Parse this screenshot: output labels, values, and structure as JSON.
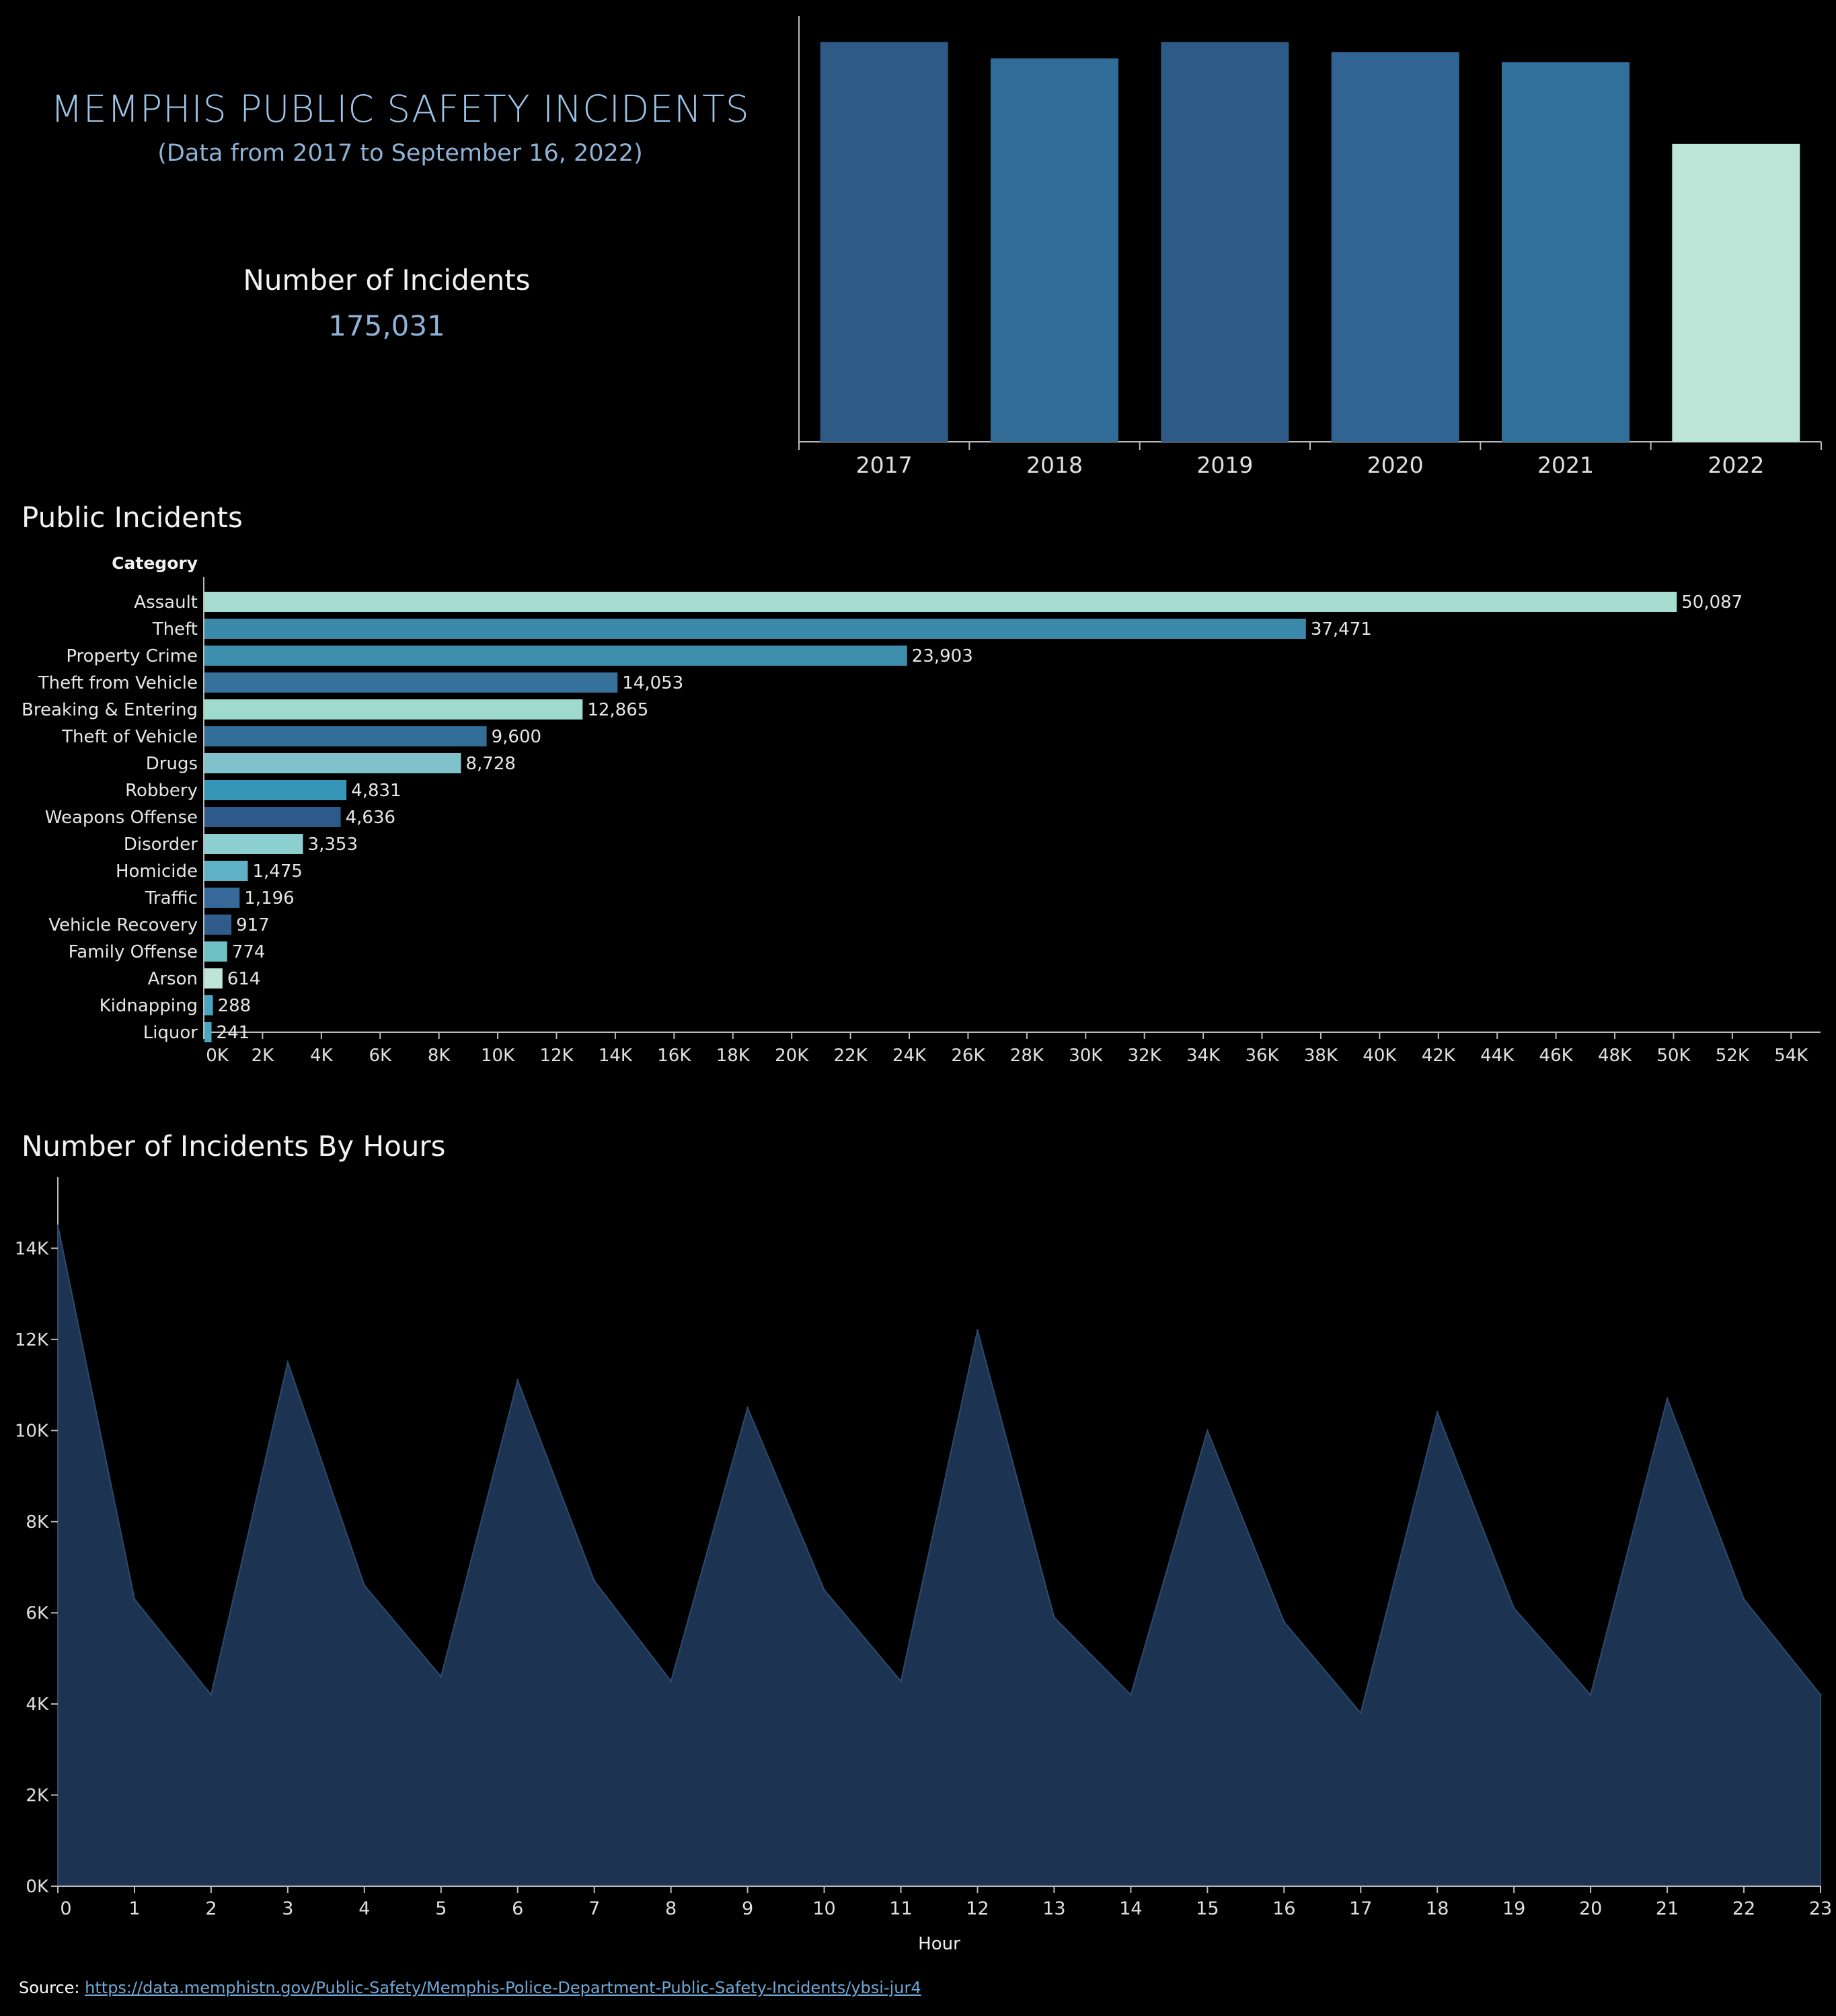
{
  "header": {
    "title": "MEMPHIS PUBLIC SAFETY INCIDENTS",
    "subtitle": "(Data from 2017 to September 16, 2022)",
    "kpi_label": "Number of Incidents",
    "kpi_value": "175,031"
  },
  "sections": {
    "public_incidents_title": "Public Incidents",
    "hours_title": "Number of Incidents By Hours"
  },
  "source": {
    "label": "Source:",
    "url": "https://data.memphistn.gov/Public-Safety/Memphis-Police-Department-Public-Safety-Incidents/ybsi-jur4"
  },
  "colors": {
    "background": "#000000",
    "year_bars": [
      "#2e5a88",
      "#306c96",
      "#2e5a88",
      "#306492",
      "#31709a",
      "#bde5d8"
    ],
    "area_fill": "#1c3452",
    "area_stroke": "#2c4a6e"
  },
  "chart_data": [
    {
      "id": "incidents_by_year",
      "type": "bar",
      "categories": [
        "2017",
        "2018",
        "2019",
        "2020",
        "2021",
        "2022"
      ],
      "values": [
        31800,
        30500,
        31800,
        31000,
        30200,
        23700
      ],
      "title": "",
      "xlabel": "",
      "ylabel": "",
      "ylim": [
        0,
        33000
      ],
      "grid": false
    },
    {
      "id": "public_incidents",
      "type": "bar",
      "orientation": "horizontal",
      "category_header": "Category",
      "categories": [
        "Assault",
        "Theft",
        "Property Crime",
        "Theft from Vehicle",
        "Breaking & Entering",
        "Theft of Vehicle",
        "Drugs",
        "Robbery",
        "Weapons Offense",
        "Disorder",
        "Homicide",
        "Traffic",
        "Vehicle Recovery",
        "Family Offense",
        "Arson",
        "Kidnapping",
        "Liquor"
      ],
      "values": [
        50087,
        37471,
        23903,
        14053,
        12865,
        9600,
        8728,
        4831,
        4636,
        3353,
        1475,
        1196,
        917,
        774,
        614,
        288,
        241
      ],
      "value_labels": [
        "50,087",
        "37,471",
        "23,903",
        "14,053",
        "12,865",
        "9,600",
        "8,728",
        "4,831",
        "4,636",
        "3,353",
        "1,475",
        "1,196",
        "917",
        "774",
        "614",
        "288",
        "241"
      ],
      "bar_colors": [
        "#a5dccf",
        "#3a88aa",
        "#3c90ae",
        "#35719b",
        "#9fdace",
        "#336e98",
        "#7fc2cc",
        "#3795b7",
        "#2e5a8b",
        "#8ccfcf",
        "#5fb1c6",
        "#36689a",
        "#2f5c8b",
        "#6cc1c5",
        "#bde6d8",
        "#48a4c1",
        "#4aa6c0"
      ],
      "x_ticks": [
        "0K",
        "2K",
        "4K",
        "6K",
        "8K",
        "10K",
        "12K",
        "14K",
        "16K",
        "18K",
        "20K",
        "22K",
        "24K",
        "26K",
        "28K",
        "30K",
        "32K",
        "34K",
        "36K",
        "38K",
        "40K",
        "42K",
        "44K",
        "46K",
        "48K",
        "50K",
        "52K",
        "54K"
      ],
      "xlim": [
        0,
        55000
      ],
      "grid": false
    },
    {
      "id": "incidents_by_hour",
      "type": "area",
      "title": "Number of Incidents By Hours",
      "xlabel": "Hour",
      "ylabel": "",
      "x": [
        0,
        1,
        2,
        3,
        4,
        5,
        6,
        7,
        8,
        9,
        10,
        11,
        12,
        13,
        14,
        15,
        16,
        17,
        18,
        19,
        20,
        21,
        22,
        23
      ],
      "values": [
        14500,
        6300,
        4200,
        11500,
        6600,
        4600,
        11100,
        6700,
        4500,
        10500,
        6500,
        4500,
        12200,
        5900,
        4200,
        10000,
        5800,
        3800,
        10400,
        6100,
        4200,
        10700,
        6300,
        4200
      ],
      "y_ticks": [
        "0K",
        "2K",
        "4K",
        "6K",
        "8K",
        "10K",
        "12K",
        "14K"
      ],
      "ylim": [
        0,
        15200
      ],
      "grid": false
    }
  ]
}
